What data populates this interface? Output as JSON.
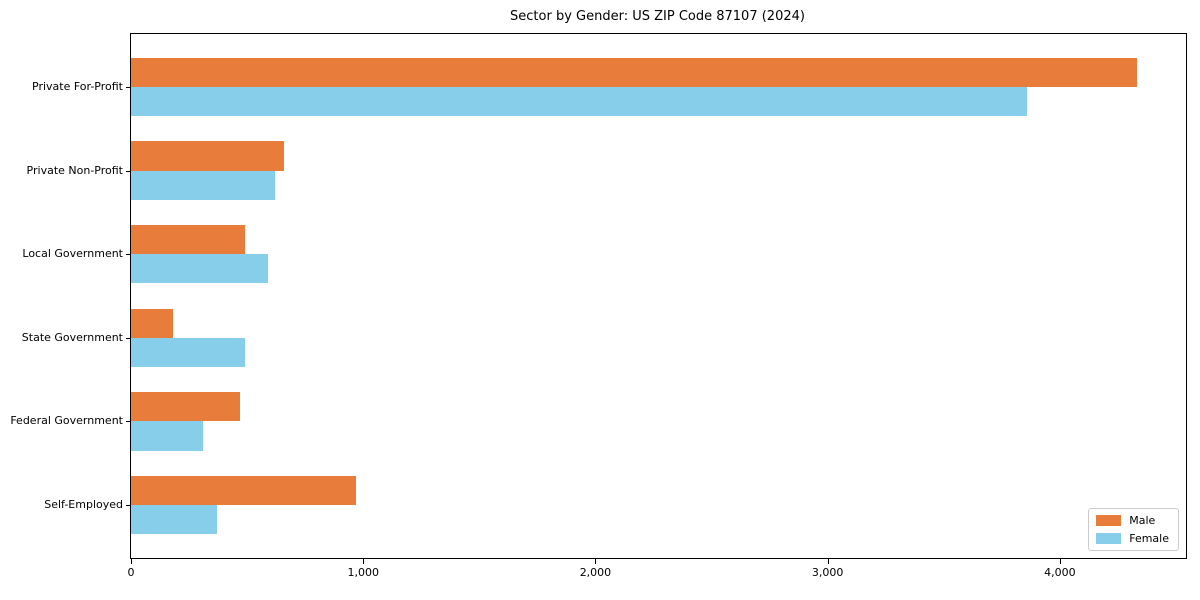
{
  "chart_data": {
    "type": "bar",
    "orientation": "horizontal",
    "title": "Sector by Gender: US ZIP Code 87107 (2024)",
    "categories": [
      "Private For-Profit",
      "Private Non-Profit",
      "Local Government",
      "State Government",
      "Federal Government",
      "Self-Employed"
    ],
    "series": [
      {
        "name": "Male",
        "color": "#E87D3B",
        "values": [
          4330,
          660,
          490,
          180,
          470,
          970
        ]
      },
      {
        "name": "Female",
        "color": "#87CEEB",
        "values": [
          3860,
          620,
          590,
          490,
          310,
          370
        ]
      }
    ],
    "xlabel": "",
    "ylabel": "",
    "xlim": [
      0,
      4543
    ],
    "xticks": {
      "values": [
        0,
        1000,
        2000,
        3000,
        4000
      ],
      "labels": [
        "0",
        "1,000",
        "2,000",
        "3,000",
        "4,000"
      ]
    },
    "grid": false,
    "legend": {
      "position": "lower-right"
    }
  }
}
